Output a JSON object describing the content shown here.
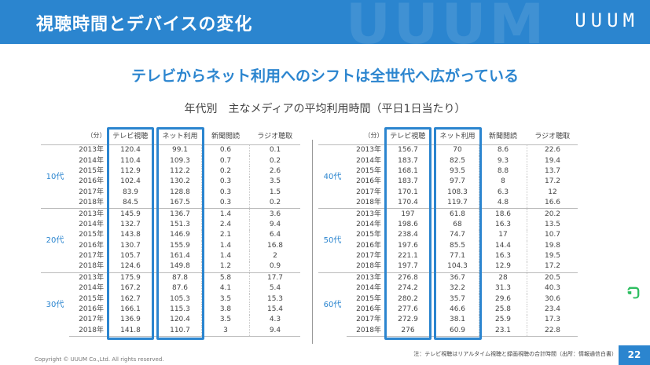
{
  "header": {
    "title": "視聴時間とデバイスの変化",
    "logo": "UUUM"
  },
  "headline": "テレビからネット利用へのシフトは全世代へ広がっている",
  "subtitle": "年代別　主なメディアの平均利用時間（平日1日当たり）",
  "table": {
    "unit": "（分）",
    "columns": [
      "テレビ視聴",
      "ネット利用",
      "新聞閲読",
      "ラジオ聴取"
    ],
    "left_groups": [
      {
        "age": "10代",
        "rows": [
          {
            "year": "2013年",
            "tv": "120.4",
            "net": "99.1",
            "news": "0.6",
            "radio": "0.1"
          },
          {
            "year": "2014年",
            "tv": "110.4",
            "net": "109.3",
            "news": "0.7",
            "radio": "0.2"
          },
          {
            "year": "2015年",
            "tv": "112.9",
            "net": "112.2",
            "news": "0.2",
            "radio": "2.6"
          },
          {
            "year": "2016年",
            "tv": "102.4",
            "net": "130.2",
            "news": "0.3",
            "radio": "3.5"
          },
          {
            "year": "2017年",
            "tv": "83.9",
            "net": "128.8",
            "news": "0.3",
            "radio": "1.5"
          },
          {
            "year": "2018年",
            "tv": "84.5",
            "net": "167.5",
            "news": "0.3",
            "radio": "0.2"
          }
        ]
      },
      {
        "age": "20代",
        "rows": [
          {
            "year": "2013年",
            "tv": "145.9",
            "net": "136.7",
            "news": "1.4",
            "radio": "3.6"
          },
          {
            "year": "2014年",
            "tv": "132.7",
            "net": "151.3",
            "news": "2.4",
            "radio": "9.4"
          },
          {
            "year": "2015年",
            "tv": "143.8",
            "net": "146.9",
            "news": "2.1",
            "radio": "6.4"
          },
          {
            "year": "2016年",
            "tv": "130.7",
            "net": "155.9",
            "news": "1.4",
            "radio": "16.8"
          },
          {
            "year": "2017年",
            "tv": "105.7",
            "net": "161.4",
            "news": "1.4",
            "radio": "2"
          },
          {
            "year": "2018年",
            "tv": "124.6",
            "net": "149.8",
            "news": "1.2",
            "radio": "0.9"
          }
        ]
      },
      {
        "age": "30代",
        "rows": [
          {
            "year": "2013年",
            "tv": "175.9",
            "net": "87.8",
            "news": "5.8",
            "radio": "17.7"
          },
          {
            "year": "2014年",
            "tv": "167.2",
            "net": "87.6",
            "news": "4.1",
            "radio": "5.4"
          },
          {
            "year": "2015年",
            "tv": "162.7",
            "net": "105.3",
            "news": "3.5",
            "radio": "15.3"
          },
          {
            "year": "2016年",
            "tv": "166.1",
            "net": "115.3",
            "news": "3.8",
            "radio": "15.4"
          },
          {
            "year": "2017年",
            "tv": "136.9",
            "net": "120.4",
            "news": "3.5",
            "radio": "4.3"
          },
          {
            "year": "2018年",
            "tv": "141.8",
            "net": "110.7",
            "news": "3",
            "radio": "9.4"
          }
        ]
      }
    ],
    "right_groups": [
      {
        "age": "40代",
        "rows": [
          {
            "year": "2013年",
            "tv": "156.7",
            "net": "70",
            "news": "8.6",
            "radio": "22.6"
          },
          {
            "year": "2014年",
            "tv": "183.7",
            "net": "82.5",
            "news": "9.3",
            "radio": "19.4"
          },
          {
            "year": "2015年",
            "tv": "168.1",
            "net": "93.5",
            "news": "8.8",
            "radio": "13.7"
          },
          {
            "year": "2016年",
            "tv": "183.7",
            "net": "97.7",
            "news": "8",
            "radio": "17.2"
          },
          {
            "year": "2017年",
            "tv": "170.1",
            "net": "108.3",
            "news": "6.3",
            "radio": "12"
          },
          {
            "year": "2018年",
            "tv": "170.4",
            "net": "119.7",
            "news": "4.8",
            "radio": "16.6"
          }
        ]
      },
      {
        "age": "50代",
        "rows": [
          {
            "year": "2013年",
            "tv": "197",
            "net": "61.8",
            "news": "18.6",
            "radio": "20.2"
          },
          {
            "year": "2014年",
            "tv": "198.6",
            "net": "68",
            "news": "16.3",
            "radio": "13.5"
          },
          {
            "year": "2015年",
            "tv": "238.4",
            "net": "74.7",
            "news": "17",
            "radio": "10.7"
          },
          {
            "year": "2016年",
            "tv": "197.6",
            "net": "85.5",
            "news": "14.4",
            "radio": "19.8"
          },
          {
            "year": "2017年",
            "tv": "221.1",
            "net": "77.1",
            "news": "16.3",
            "radio": "19.5"
          },
          {
            "year": "2018年",
            "tv": "197.7",
            "net": "104.3",
            "news": "12.9",
            "radio": "17.2"
          }
        ]
      },
      {
        "age": "60代",
        "rows": [
          {
            "year": "2013年",
            "tv": "276.8",
            "net": "36.7",
            "news": "28",
            "radio": "20.5"
          },
          {
            "year": "2014年",
            "tv": "274.2",
            "net": "32.2",
            "news": "31.3",
            "radio": "40.3"
          },
          {
            "year": "2015年",
            "tv": "280.2",
            "net": "35.7",
            "news": "29.6",
            "radio": "30.6"
          },
          {
            "year": "2016年",
            "tv": "277.6",
            "net": "46.6",
            "news": "25.8",
            "radio": "23.4"
          },
          {
            "year": "2017年",
            "tv": "272.9",
            "net": "38.1",
            "news": "25.9",
            "radio": "17.3"
          },
          {
            "year": "2018年",
            "tv": "276",
            "net": "60.9",
            "news": "23.1",
            "radio": "22.8"
          }
        ]
      }
    ]
  },
  "footnote": "注：テレビ視聴はリアルタイム視聴と録画視聴の合計時間（出所：情報通信白書）",
  "copyright": "Copyright © UUUM Co.,Ltd. All rights reserved.",
  "page_number": "22",
  "colors": {
    "accent": "#2b85cf",
    "evernote": "#2dbe60"
  },
  "icons": {
    "side": "evernote-elephant-icon"
  }
}
